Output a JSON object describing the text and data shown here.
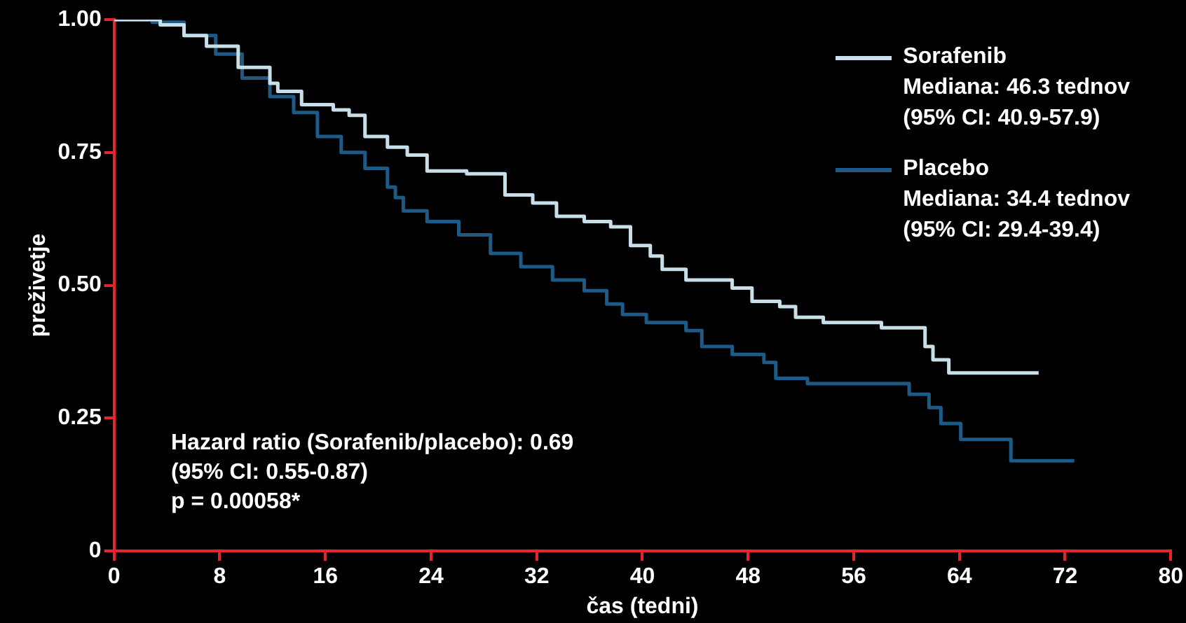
{
  "chart_data": {
    "type": "step",
    "xlabel": "čas (tedni)",
    "ylabel": "preživetje",
    "xlim": [
      0,
      80
    ],
    "xticks": [
      0,
      8,
      16,
      24,
      32,
      40,
      48,
      56,
      64,
      72,
      80
    ],
    "ylim": [
      0,
      1
    ],
    "yticks": [
      {
        "value": 0,
        "label": "0"
      },
      {
        "value": 0.25,
        "label": "0.25"
      },
      {
        "value": 0.5,
        "label": "0.50"
      },
      {
        "value": 0.75,
        "label": "0.75"
      },
      {
        "value": 1,
        "label": "1.00"
      }
    ],
    "grid": false,
    "legend": "top right",
    "marker": "none",
    "line_style": "solid",
    "series": [
      {
        "name": "Sorafenib",
        "color": "#c8dfea",
        "x": [
          0,
          2,
          3.5,
          5.3,
          7,
          9.4,
          11.8,
          12.4,
          14.2,
          16.6,
          17.8,
          19,
          20.7,
          22.2,
          23.7,
          26.7,
          29.6,
          31.7,
          33.5,
          35.6,
          37.6,
          39.1,
          40.6,
          41.5,
          43.3,
          46.8,
          48.3,
          50.4,
          51.6,
          53.7,
          58.1,
          61.4,
          62,
          63.2,
          70
        ],
        "values": [
          1,
          1,
          0.99,
          0.97,
          0.95,
          0.91,
          0.88,
          0.865,
          0.84,
          0.83,
          0.82,
          0.78,
          0.76,
          0.745,
          0.715,
          0.71,
          0.67,
          0.655,
          0.63,
          0.62,
          0.61,
          0.575,
          0.555,
          0.53,
          0.51,
          0.495,
          0.47,
          0.46,
          0.44,
          0.43,
          0.42,
          0.385,
          0.36,
          0.335,
          0.335
        ]
      },
      {
        "name": "Placebo",
        "color": "#1d5a85",
        "x": [
          0,
          2.9,
          5.3,
          7.7,
          9.7,
          11.8,
          13.6,
          15.4,
          17.2,
          19,
          20.7,
          21.3,
          21.9,
          23.7,
          26.1,
          28.5,
          30.8,
          33.2,
          35.6,
          37.3,
          38.5,
          40.3,
          43.3,
          44.5,
          46.8,
          49.2,
          50.1,
          52.5,
          60.2,
          61.7,
          62.6,
          64.1,
          67.9,
          72.7
        ],
        "values": [
          1,
          0.995,
          0.97,
          0.935,
          0.89,
          0.855,
          0.825,
          0.78,
          0.75,
          0.72,
          0.685,
          0.665,
          0.64,
          0.62,
          0.595,
          0.56,
          0.535,
          0.51,
          0.49,
          0.465,
          0.445,
          0.43,
          0.415,
          0.385,
          0.37,
          0.355,
          0.325,
          0.315,
          0.295,
          0.27,
          0.24,
          0.21,
          0.17,
          0.17
        ]
      }
    ],
    "annotations": [
      "Mediana: 46.3 tednov",
      "(95% CI: 40.9-57.9)",
      "Mediana: 34.4 tednov",
      "(95% CI: 29.4-39.4)",
      "Hazard ratio (Sorafenib/placebo): 0.69",
      "(95% CI: 0.55-0.87)",
      "p = 0.00058*"
    ]
  }
}
